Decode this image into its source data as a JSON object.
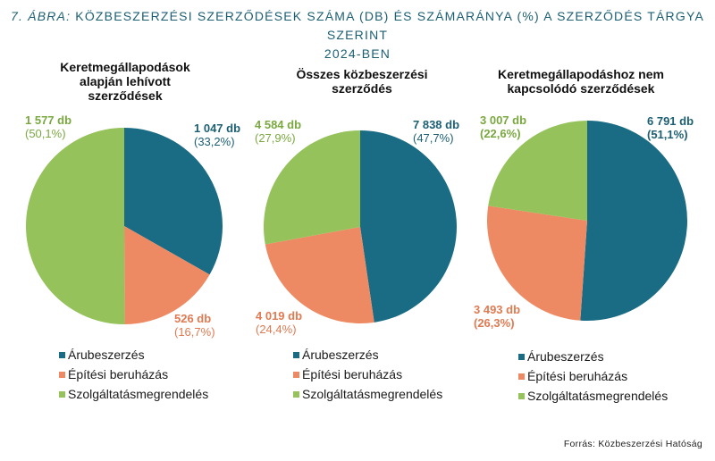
{
  "figure": {
    "title_lead": "7. ÁBRA:",
    "title_rest": "KÖZBESZERZÉSI SZERZŐDÉSEK SZÁMA (DB) ÉS SZÁMARÁNYA  (%) A SZERZŐDÉS TÁRGYA SZERINT",
    "title_line2": "2024-BEN",
    "source": "Forrás: Közbeszerzési  Hatóság"
  },
  "colors": {
    "aru": "#1a6c84",
    "epitesi": "#ee8a63",
    "szolg": "#95c25a",
    "title": "#1c5f73"
  },
  "legend_labels": [
    "Árubeszerzés",
    "Építési beruházás",
    "Szolgáltatásmegrendelés"
  ],
  "chart_data": [
    {
      "type": "pie",
      "title_lines": [
        "Keretmegállapodások",
        "alapján lehívott",
        "szerződések"
      ],
      "slices": [
        {
          "category": "Árubeszerzés",
          "value": 1047,
          "percent": 33.2,
          "label": "1 047 db",
          "pct_label": "(33,2%)"
        },
        {
          "category": "Építési beruházás",
          "value": 526,
          "percent": 16.7,
          "label": "526 db",
          "pct_label": "(16,7%)"
        },
        {
          "category": "Szolgáltatásmegrendelés",
          "value": 1577,
          "percent": 50.1,
          "label": "1 577 db",
          "pct_label": "(50,1%)"
        }
      ]
    },
    {
      "type": "pie",
      "title_lines": [
        "Összes közbeszerzési",
        "szerződés"
      ],
      "slices": [
        {
          "category": "Árubeszerzés",
          "value": 7838,
          "percent": 47.7,
          "label": "7 838 db",
          "pct_label": "(47,7%)"
        },
        {
          "category": "Építési beruházás",
          "value": 4019,
          "percent": 24.4,
          "label": "4 019 db",
          "pct_label": "(24,4%)"
        },
        {
          "category": "Szolgáltatásmegrendelés",
          "value": 4584,
          "percent": 27.9,
          "label": "4 584 db",
          "pct_label": "(27,9%)"
        }
      ]
    },
    {
      "type": "pie",
      "title_lines": [
        "Keretmegállapodáshoz  nem",
        "kapcsolódó  szerződések"
      ],
      "slices": [
        {
          "category": "Árubeszerzés",
          "value": 6791,
          "percent": 51.1,
          "label": "6 791 db",
          "pct_label": "(51,1%)"
        },
        {
          "category": "Építési beruházás",
          "value": 3493,
          "percent": 26.3,
          "label": "3 493 db",
          "pct_label": "(26,3%)"
        },
        {
          "category": "Szolgáltatásmegrendelés",
          "value": 3007,
          "percent": 22.6,
          "label": "3 007 db",
          "pct_label": "(22,6%)"
        }
      ]
    }
  ]
}
